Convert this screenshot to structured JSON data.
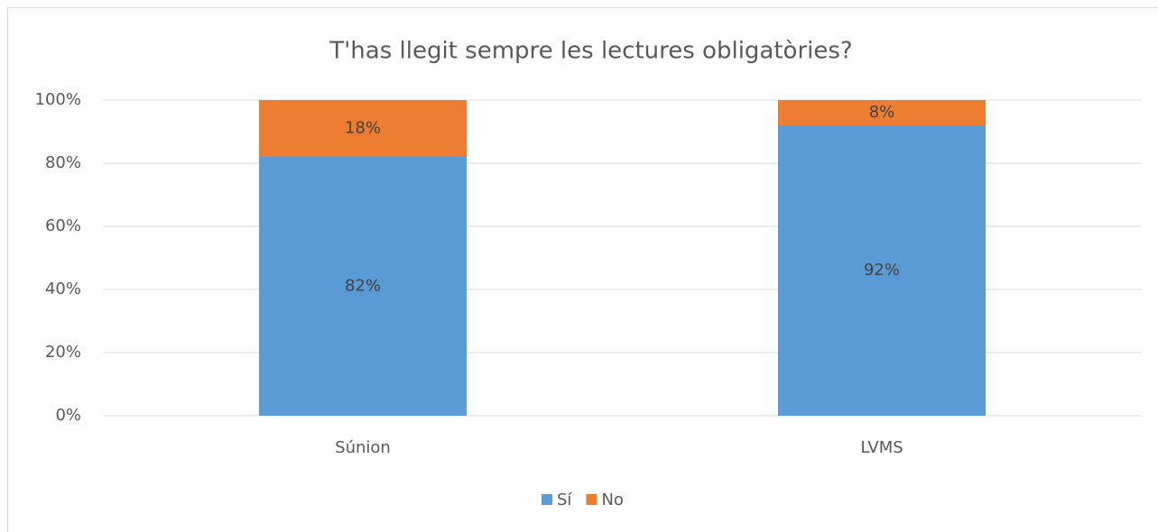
{
  "chart_data": {
    "type": "stacked_bar",
    "title": "T'has llegit sempre les lectures obligatòries?",
    "categories": [
      "Súnion",
      "LVMS"
    ],
    "series": [
      {
        "name": "Sí",
        "color": "#5b9bd5",
        "values": [
          82,
          92
        ],
        "value_labels": [
          "82%",
          "92%"
        ]
      },
      {
        "name": "No",
        "color": "#ed7d31",
        "values": [
          18,
          8
        ],
        "value_labels": [
          "18%",
          "8%"
        ]
      }
    ],
    "ylim": [
      0,
      100
    ],
    "yticks": [
      {
        "value": 0,
        "label": "0%"
      },
      {
        "value": 20,
        "label": "20%"
      },
      {
        "value": 40,
        "label": "40%"
      },
      {
        "value": 60,
        "label": "60%"
      },
      {
        "value": 80,
        "label": "80%"
      },
      {
        "value": 100,
        "label": "100%"
      }
    ],
    "grid": true,
    "legend": "bottom"
  }
}
